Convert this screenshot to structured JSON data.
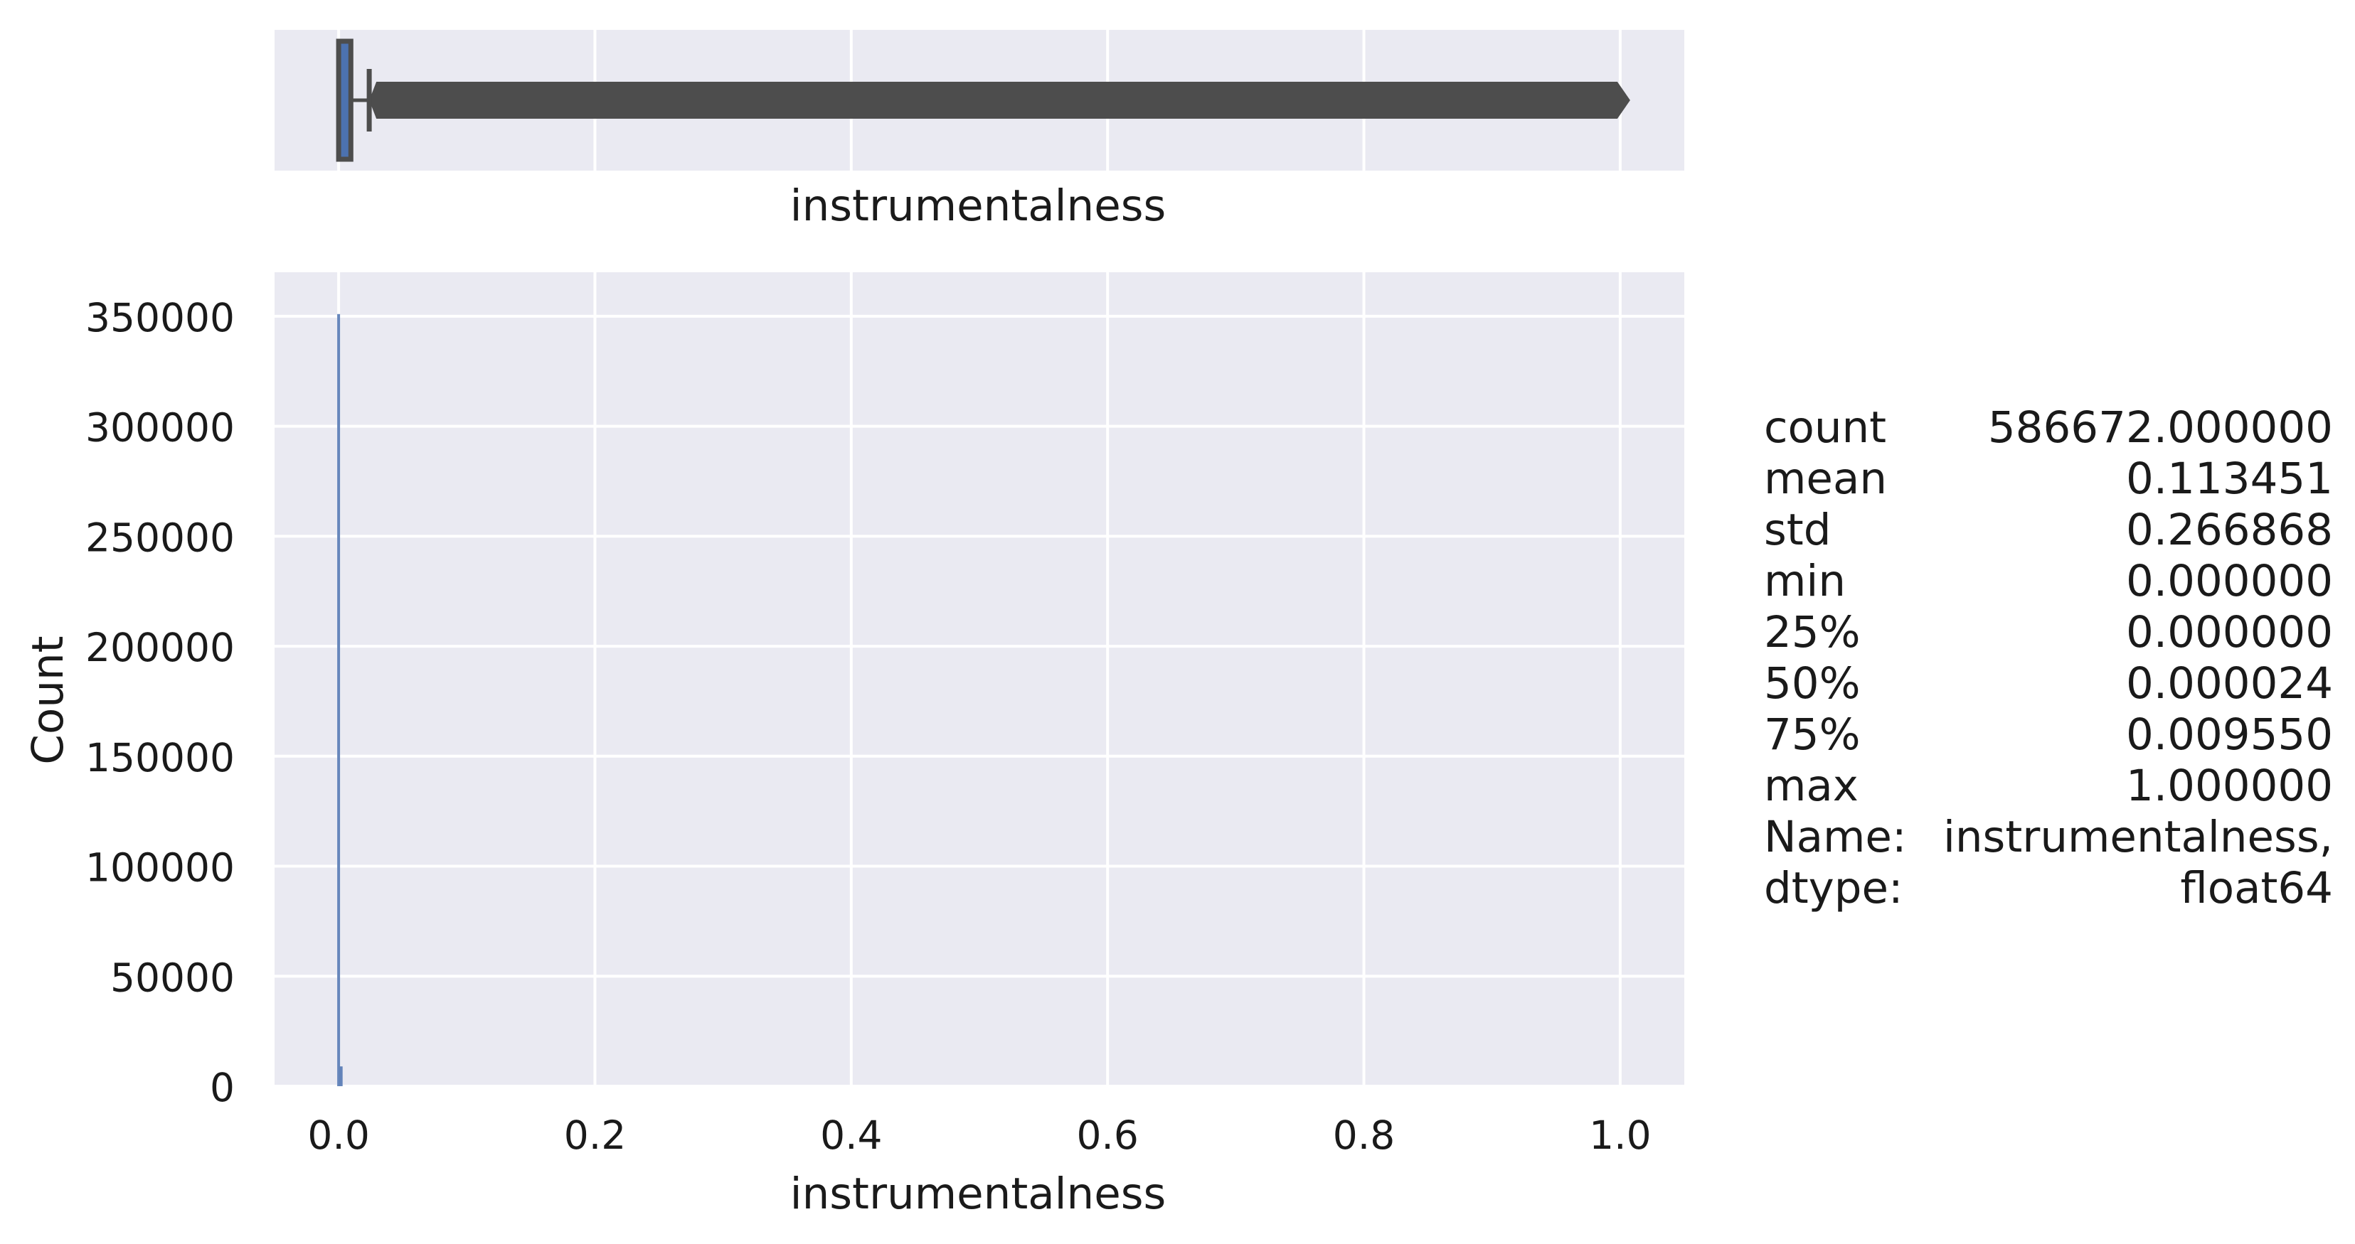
{
  "chart_data": [
    {
      "type": "box",
      "xlabel": "instrumentalness",
      "xlim": [
        -0.05,
        1.05
      ],
      "box": {
        "whisker_low": 0.0,
        "q1": 0.0,
        "median": 2.4e-05,
        "q3": 0.00955,
        "whisker_high": 0.02387,
        "outliers_from": 0.0239,
        "outliers_to": 1.0
      },
      "colors": {
        "box_fill": "#4c72b0",
        "line": "#4d4d4d",
        "background": "#eaeaf2",
        "grid": "#ffffff"
      }
    },
    {
      "type": "bar",
      "title": "",
      "xlabel": "instrumentalness",
      "ylabel": "Count",
      "xlim": [
        -0.05,
        1.05
      ],
      "ylim": [
        0,
        370000
      ],
      "x_ticks": [
        "0.0",
        "0.2",
        "0.4",
        "0.6",
        "0.8",
        "1.0"
      ],
      "y_ticks": [
        "0",
        "50000",
        "100000",
        "150000",
        "200000",
        "250000",
        "300000",
        "350000"
      ],
      "bins": [
        {
          "x": 0.0,
          "value": 351000
        },
        {
          "x": 0.002,
          "value": 9000
        }
      ],
      "colors": {
        "bar": "#4c72b0",
        "background": "#eaeaf2",
        "grid": "#ffffff"
      }
    }
  ],
  "stats_text": [
    {
      "label": "count",
      "value": "586672.000000"
    },
    {
      "label": "mean",
      "value": "0.113451"
    },
    {
      "label": "std",
      "value": "0.266868"
    },
    {
      "label": "min",
      "value": "0.000000"
    },
    {
      "label": "25%",
      "value": "0.000000"
    },
    {
      "label": "50%",
      "value": "0.000024"
    },
    {
      "label": "75%",
      "value": "0.009550"
    },
    {
      "label": "max",
      "value": "1.000000"
    },
    {
      "label": "Name:",
      "value": "instrumentalness,"
    },
    {
      "label": "dtype:",
      "value": "float64"
    }
  ]
}
